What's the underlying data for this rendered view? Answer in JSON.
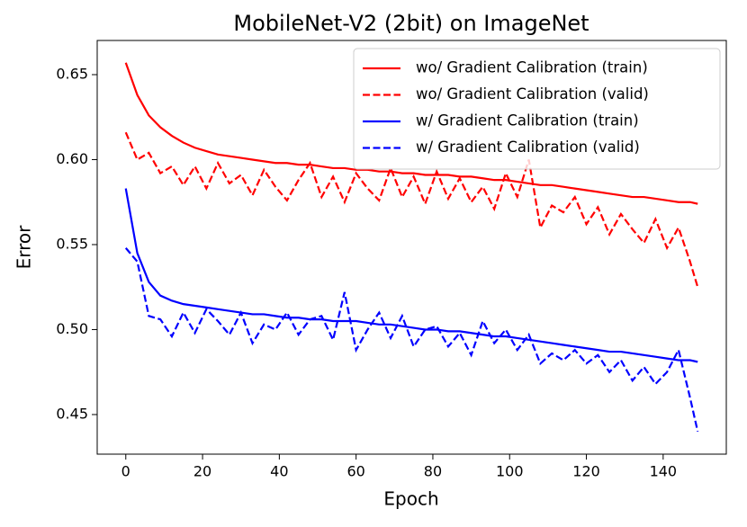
{
  "chart_data": {
    "type": "line",
    "title": "MobileNet-V2 (2bit) on ImageNet",
    "xlabel": "Epoch",
    "ylabel": "Error",
    "x": [
      0,
      3,
      6,
      9,
      12,
      15,
      18,
      21,
      24,
      27,
      30,
      33,
      36,
      39,
      42,
      45,
      48,
      51,
      54,
      57,
      60,
      63,
      66,
      69,
      72,
      75,
      78,
      81,
      84,
      87,
      90,
      93,
      96,
      99,
      102,
      105,
      108,
      111,
      114,
      117,
      120,
      123,
      126,
      129,
      132,
      135,
      138,
      141,
      144,
      147,
      149
    ],
    "series": [
      {
        "name": "wo/ Gradient Calibration (train)",
        "color": "#ff0000",
        "linestyle": "solid",
        "values": [
          0.657,
          0.638,
          0.626,
          0.619,
          0.614,
          0.61,
          0.607,
          0.605,
          0.603,
          0.602,
          0.601,
          0.6,
          0.599,
          0.598,
          0.598,
          0.597,
          0.597,
          0.596,
          0.595,
          0.595,
          0.594,
          0.594,
          0.593,
          0.593,
          0.592,
          0.592,
          0.591,
          0.591,
          0.591,
          0.59,
          0.59,
          0.589,
          0.588,
          0.588,
          0.587,
          0.586,
          0.585,
          0.585,
          0.584,
          0.583,
          0.582,
          0.581,
          0.58,
          0.579,
          0.578,
          0.578,
          0.577,
          0.576,
          0.575,
          0.575,
          0.574
        ]
      },
      {
        "name": "wo/ Gradient Calibration (valid)",
        "color": "#ff0000",
        "linestyle": "dashed",
        "values": [
          0.616,
          0.6,
          0.604,
          0.592,
          0.596,
          0.585,
          0.596,
          0.583,
          0.598,
          0.586,
          0.591,
          0.579,
          0.594,
          0.584,
          0.576,
          0.588,
          0.598,
          0.578,
          0.59,
          0.575,
          0.592,
          0.583,
          0.576,
          0.595,
          0.578,
          0.59,
          0.574,
          0.593,
          0.577,
          0.589,
          0.575,
          0.584,
          0.571,
          0.592,
          0.578,
          0.6,
          0.56,
          0.573,
          0.569,
          0.578,
          0.562,
          0.572,
          0.556,
          0.568,
          0.559,
          0.551,
          0.565,
          0.548,
          0.56,
          0.54,
          0.525
        ]
      },
      {
        "name": "w/ Gradient Calibration (train)",
        "color": "#0000ff",
        "linestyle": "solid",
        "values": [
          0.583,
          0.545,
          0.528,
          0.52,
          0.517,
          0.515,
          0.514,
          0.513,
          0.512,
          0.511,
          0.51,
          0.509,
          0.509,
          0.508,
          0.507,
          0.507,
          0.506,
          0.506,
          0.505,
          0.505,
          0.505,
          0.504,
          0.503,
          0.503,
          0.502,
          0.501,
          0.5,
          0.5,
          0.499,
          0.499,
          0.498,
          0.497,
          0.496,
          0.496,
          0.495,
          0.494,
          0.493,
          0.492,
          0.491,
          0.49,
          0.489,
          0.488,
          0.487,
          0.487,
          0.486,
          0.485,
          0.484,
          0.483,
          0.482,
          0.482,
          0.481
        ]
      },
      {
        "name": "w/ Gradient Calibration (valid)",
        "color": "#0000ff",
        "linestyle": "dashed",
        "values": [
          0.548,
          0.54,
          0.508,
          0.506,
          0.496,
          0.51,
          0.498,
          0.512,
          0.505,
          0.497,
          0.51,
          0.492,
          0.503,
          0.5,
          0.51,
          0.497,
          0.506,
          0.508,
          0.494,
          0.522,
          0.488,
          0.5,
          0.51,
          0.495,
          0.508,
          0.49,
          0.5,
          0.502,
          0.49,
          0.498,
          0.485,
          0.505,
          0.492,
          0.5,
          0.488,
          0.497,
          0.48,
          0.486,
          0.482,
          0.488,
          0.48,
          0.485,
          0.475,
          0.482,
          0.47,
          0.478,
          0.468,
          0.475,
          0.488,
          0.46,
          0.44
        ]
      }
    ],
    "xlim": [
      -7.45,
      156.45
    ],
    "xticks": [
      0,
      20,
      40,
      60,
      80,
      100,
      120,
      140
    ],
    "ylim": [
      0.4267,
      0.6701
    ],
    "yticks": [
      0.45,
      {
        "value": 0.5,
        "label": "0.50"
      },
      0.55,
      {
        "value": 0.6,
        "label": "0.60"
      },
      0.65
    ],
    "legend": "upper right"
  }
}
